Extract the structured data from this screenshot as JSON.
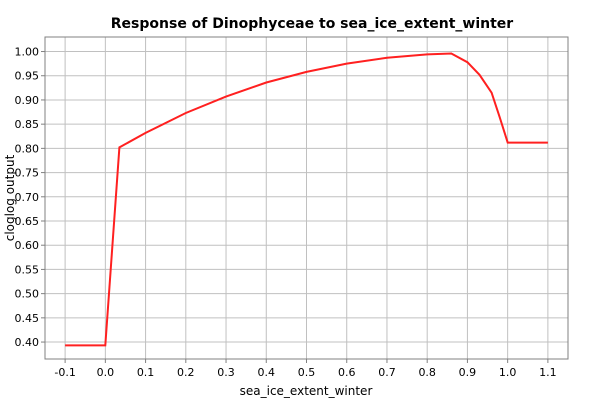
{
  "chart_data": {
    "type": "line",
    "title": "Response of Dinophyceae to sea_ice_extent_winter",
    "xlabel": "sea_ice_extent_winter",
    "ylabel": "cloglog output",
    "xlim": [
      -0.15,
      1.15
    ],
    "ylim": [
      0.365,
      1.03
    ],
    "xticks": [
      -0.1,
      0.0,
      0.1,
      0.2,
      0.3,
      0.4,
      0.5,
      0.6,
      0.7,
      0.8,
      0.9,
      1.0,
      1.1
    ],
    "xtick_labels": [
      "-0.1",
      "0.0",
      "0.1",
      "0.2",
      "0.3",
      "0.4",
      "0.5",
      "0.6",
      "0.7",
      "0.8",
      "0.9",
      "1.0",
      "1.1"
    ],
    "yticks": [
      0.4,
      0.45,
      0.5,
      0.55,
      0.6,
      0.65,
      0.7,
      0.75,
      0.8,
      0.85,
      0.9,
      0.95,
      1.0
    ],
    "ytick_labels": [
      "0.40",
      "0.45",
      "0.50",
      "0.55",
      "0.60",
      "0.65",
      "0.70",
      "0.75",
      "0.80",
      "0.85",
      "0.90",
      "0.95",
      "1.00"
    ],
    "grid": true,
    "line_color": "#ff2020",
    "series": [
      {
        "x": [
          -0.1,
          0.0,
          0.035,
          0.1,
          0.2,
          0.3,
          0.4,
          0.5,
          0.6,
          0.7,
          0.8,
          0.86,
          0.9,
          0.93,
          0.96,
          0.98,
          1.0,
          1.1
        ],
        "y": [
          0.393,
          0.393,
          0.802,
          0.832,
          0.873,
          0.907,
          0.936,
          0.958,
          0.975,
          0.987,
          0.994,
          0.996,
          0.978,
          0.952,
          0.915,
          0.865,
          0.812,
          0.812
        ]
      }
    ]
  }
}
